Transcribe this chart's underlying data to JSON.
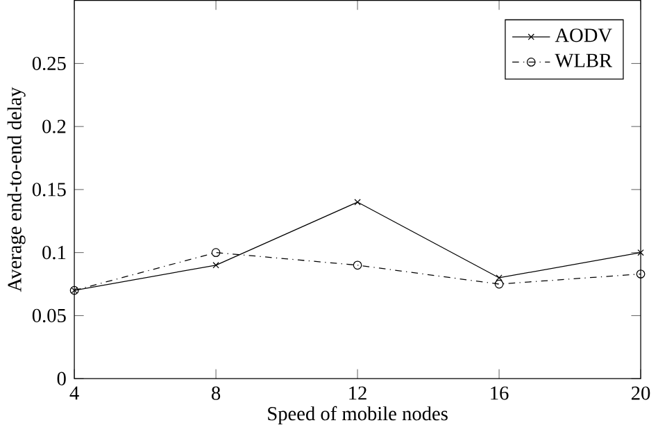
{
  "chart_data": {
    "type": "line",
    "xlabel": "Speed of mobile nodes",
    "ylabel": "Average end-to-end delay",
    "x": [
      4,
      8,
      12,
      16,
      20
    ],
    "xlim": [
      4,
      20
    ],
    "xticks": [
      4,
      8,
      12,
      16,
      20
    ],
    "ylim": [
      0,
      0.3
    ],
    "yticks": [
      0,
      0.05,
      0.1,
      0.15,
      0.2,
      0.25
    ],
    "series": [
      {
        "name": "AODV",
        "color": "#000000",
        "values": [
          0.07,
          0.09,
          0.14,
          0.08,
          0.1
        ],
        "marker": "cross",
        "line_style": "solid"
      },
      {
        "name": "WLBR",
        "color": "#000000",
        "values": [
          0.07,
          0.1,
          0.09,
          0.075,
          0.083
        ],
        "marker": "circle",
        "line_style": "dashdotted"
      }
    ],
    "legend": "top right",
    "grid": false
  }
}
